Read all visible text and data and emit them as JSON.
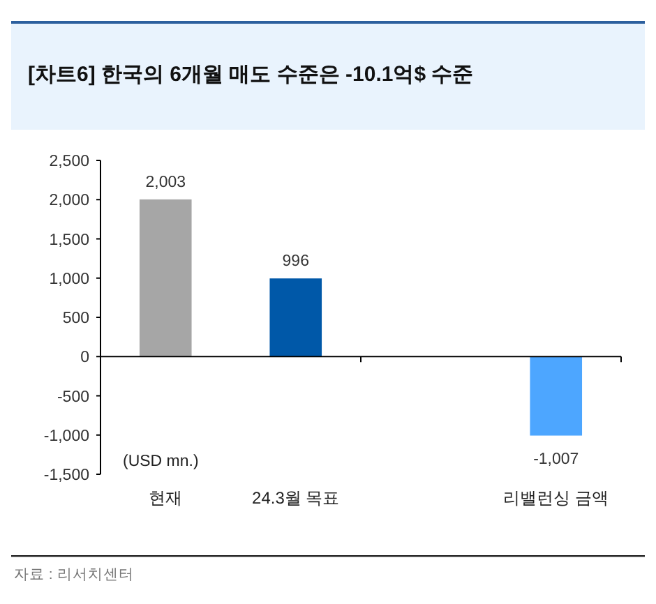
{
  "chart_data": {
    "type": "bar",
    "title": "[차트6] 한국의 6개월 매도 수준은 -10.1억$ 수준",
    "categories": [
      "현재",
      "24.3월 목표",
      null,
      "리밸런싱 금액"
    ],
    "values": [
      2003,
      996,
      null,
      -1007
    ],
    "colors": [
      "#a6a6a6",
      "#0058a8",
      null,
      "#4da6ff"
    ],
    "value_labels": [
      "2,003",
      "996",
      null,
      "-1,007"
    ],
    "ylim": [
      -1500,
      2500
    ],
    "yticks": [
      {
        "value": 2500,
        "label": "2,500"
      },
      {
        "value": 2000,
        "label": "2,000"
      },
      {
        "value": 1500,
        "label": "1,500"
      },
      {
        "value": 1000,
        "label": "1,000"
      },
      {
        "value": 500,
        "label": "500"
      },
      {
        "value": 0,
        "label": "0"
      },
      {
        "value": -500,
        "label": "-500"
      },
      {
        "value": -1000,
        "label": "-1,000"
      },
      {
        "value": -1500,
        "label": "-1,500"
      }
    ],
    "annotations": [
      "(USD mn.)",
      "자료 : 리서치센터"
    ]
  }
}
